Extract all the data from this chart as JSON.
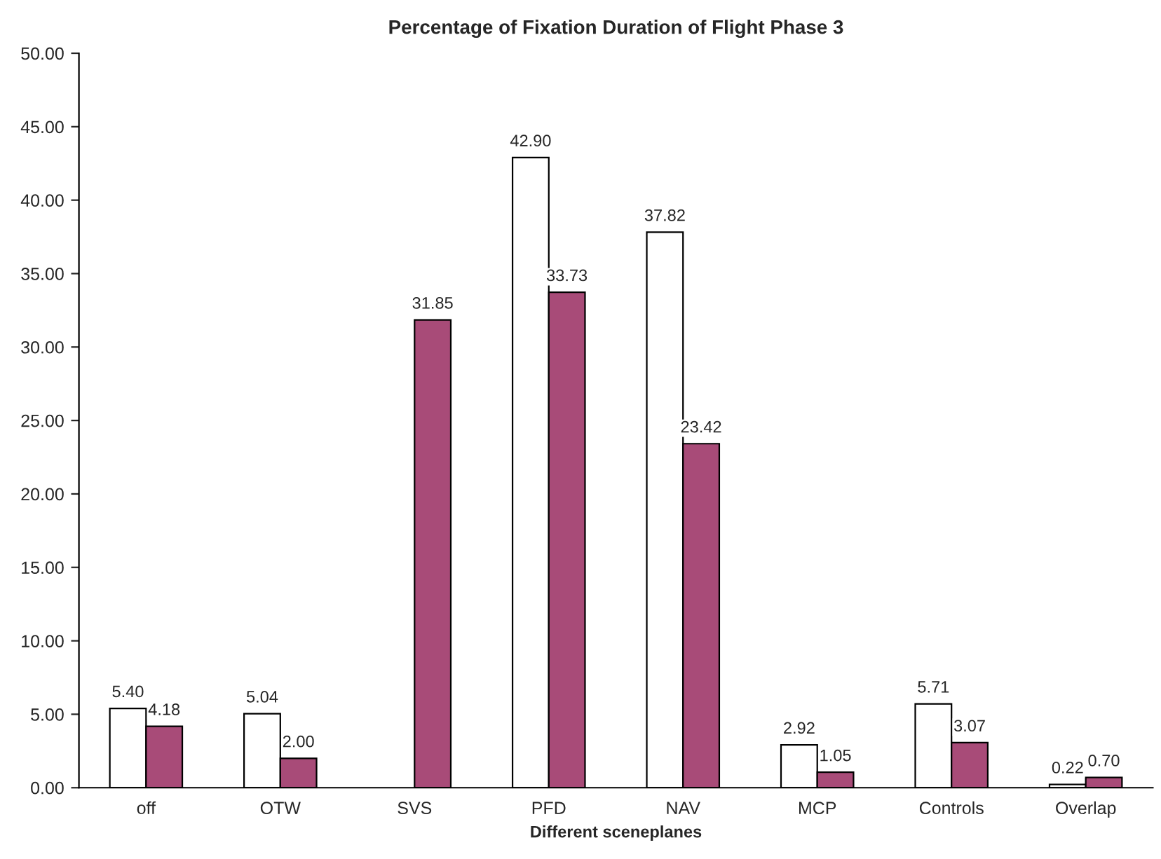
{
  "chart_data": {
    "type": "bar",
    "title": "Percentage of Fixation Duration of Flight Phase 3",
    "xlabel": "Different sceneplanes",
    "categories": [
      "off",
      "OTW",
      "SVS",
      "PFD",
      "NAV",
      "MCP",
      "Controls",
      "Overlap"
    ],
    "series": [
      {
        "color": "#ffffff",
        "values": [
          5.4,
          5.04,
          null,
          42.9,
          37.82,
          2.92,
          5.71,
          0.22
        ],
        "value_labels": [
          "5.40",
          "5.04",
          null,
          "42.90",
          "37.82",
          "2.92",
          "5.71",
          "0.22"
        ]
      },
      {
        "color": "#a84b78",
        "values": [
          4.18,
          2.0,
          31.85,
          33.73,
          23.42,
          1.05,
          3.07,
          0.7
        ],
        "value_labels": [
          "4.18",
          "2.00",
          "31.85",
          "33.73",
          "23.42",
          "1.05",
          "3.07",
          "0.70"
        ]
      }
    ],
    "ylim": [
      0,
      50
    ],
    "yticks": [
      {
        "value": 0,
        "label": "0.00"
      },
      {
        "value": 5,
        "label": "5.00"
      },
      {
        "value": 10,
        "label": "10.00"
      },
      {
        "value": 15,
        "label": "15.00"
      },
      {
        "value": 20,
        "label": "20.00"
      },
      {
        "value": 25,
        "label": "25.00"
      },
      {
        "value": 30,
        "label": "30.00"
      },
      {
        "value": 35,
        "label": "35.00"
      },
      {
        "value": 40,
        "label": "40.00"
      },
      {
        "value": 45,
        "label": "45.00"
      },
      {
        "value": 50,
        "label": "50.00"
      }
    ],
    "grid": false,
    "legend": false
  }
}
